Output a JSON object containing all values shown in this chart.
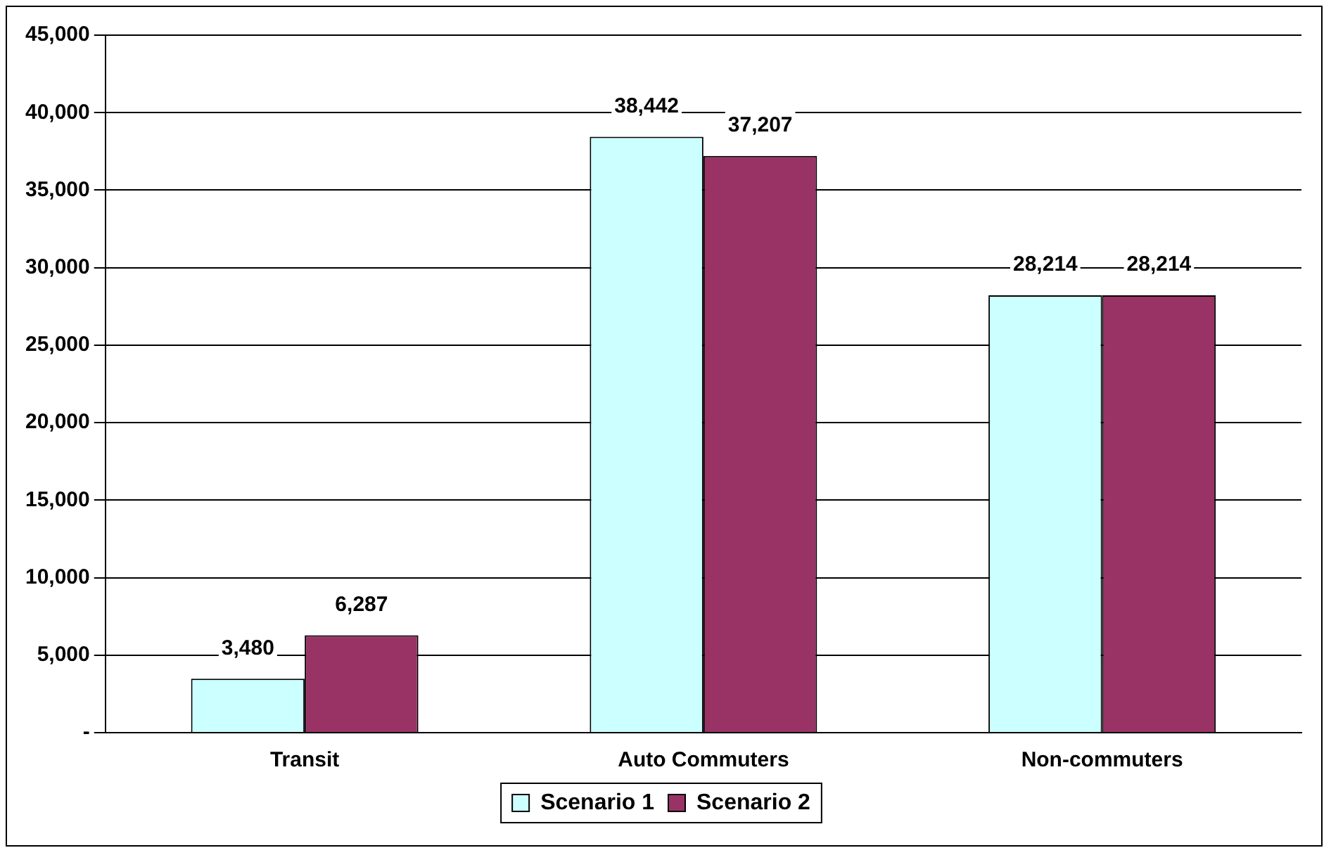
{
  "chart_data": {
    "type": "bar",
    "categories": [
      "Transit",
      "Auto Commuters",
      "Non-commuters"
    ],
    "series": [
      {
        "name": "Scenario 1",
        "color": "#ccffff",
        "values": [
          3480,
          38442,
          28214
        ],
        "value_labels": [
          "3,480",
          "38,442",
          "28,214"
        ]
      },
      {
        "name": "Scenario 2",
        "color": "#993366",
        "values": [
          6287,
          37207,
          28214
        ],
        "value_labels": [
          "6,287",
          "37,207",
          "28,214"
        ]
      }
    ],
    "ylim": [
      0,
      45000
    ],
    "yticks": [
      {
        "value": 0,
        "label": "-"
      },
      {
        "value": 5000,
        "label": "5,000"
      },
      {
        "value": 10000,
        "label": "10,000"
      },
      {
        "value": 15000,
        "label": "15,000"
      },
      {
        "value": 20000,
        "label": "20,000"
      },
      {
        "value": 25000,
        "label": "25,000"
      },
      {
        "value": 30000,
        "label": "30,000"
      },
      {
        "value": 35000,
        "label": "35,000"
      },
      {
        "value": 40000,
        "label": "40,000"
      },
      {
        "value": 45000,
        "label": "45,000"
      }
    ],
    "grid": "y",
    "legend": "bottom"
  }
}
